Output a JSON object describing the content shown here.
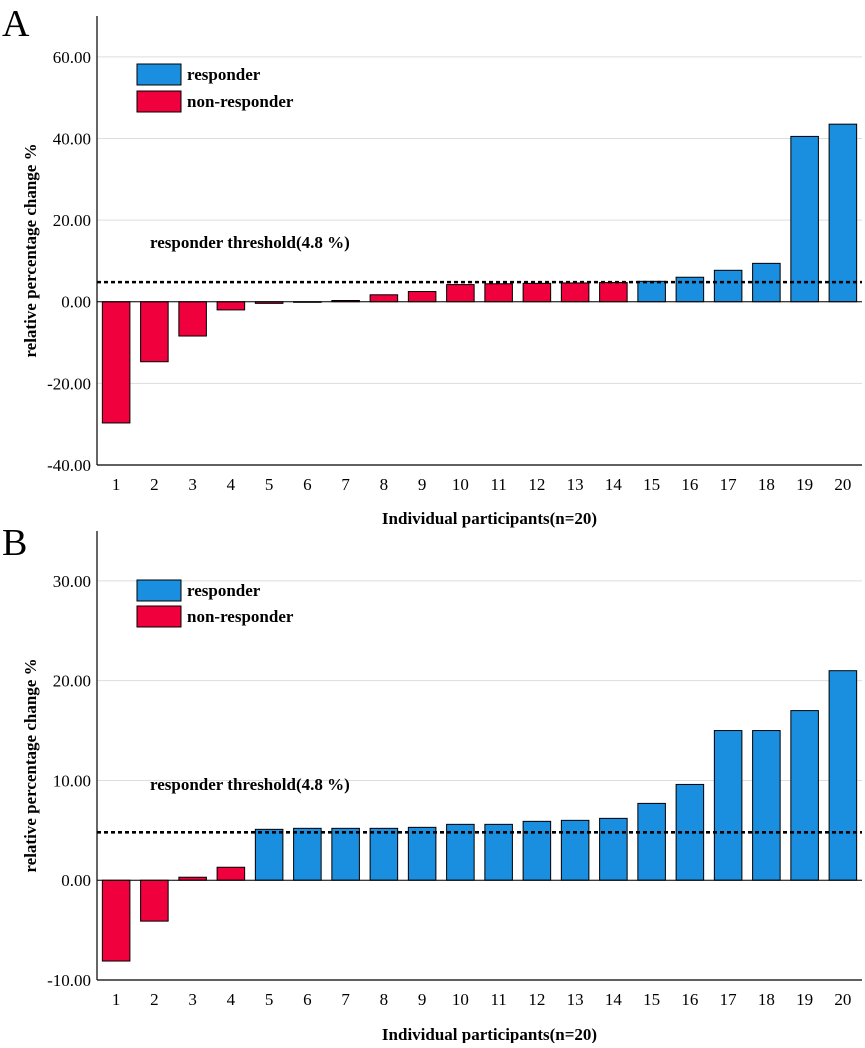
{
  "chart_data": [
    {
      "panel": "A",
      "type": "bar",
      "xlabel": "Individual participants(n=20)",
      "ylabel": "relative percentage change %",
      "ylim": [
        -40,
        70
      ],
      "yticks": [
        -40,
        -20,
        0,
        20,
        40,
        60
      ],
      "ytick_labels": [
        "-40.00",
        "-20.00",
        "0.00",
        "20.00",
        "40.00",
        "60.00"
      ],
      "gridlines": true,
      "legend_position": "top-left",
      "categories": [
        "1",
        "2",
        "3",
        "4",
        "5",
        "6",
        "7",
        "8",
        "9",
        "10",
        "11",
        "12",
        "13",
        "14",
        "15",
        "16",
        "17",
        "18",
        "19",
        "20"
      ],
      "values": [
        -29.7,
        -14.7,
        -8.4,
        -2.0,
        -0.4,
        0.0,
        0.3,
        1.7,
        2.5,
        4.2,
        4.4,
        4.5,
        4.6,
        4.7,
        5.0,
        6.0,
        7.7,
        9.4,
        40.5,
        43.5
      ],
      "groups": [
        "non-responder",
        "non-responder",
        "non-responder",
        "non-responder",
        "non-responder",
        "non-responder",
        "non-responder",
        "non-responder",
        "non-responder",
        "non-responder",
        "non-responder",
        "non-responder",
        "non-responder",
        "non-responder",
        "responder",
        "responder",
        "responder",
        "responder",
        "responder",
        "responder"
      ],
      "threshold": 4.8,
      "threshold_label": "responder threshold(4.8 %)"
    },
    {
      "panel": "B",
      "type": "bar",
      "xlabel": "Individual participants(n=20)",
      "ylabel": "relative percentage change %",
      "ylim": [
        -10,
        35
      ],
      "yticks": [
        -10,
        0,
        10,
        20,
        30
      ],
      "ytick_labels": [
        "-10.00",
        "0.00",
        "10.00",
        "20.00",
        "30.00"
      ],
      "gridlines": true,
      "legend_position": "top-left",
      "categories": [
        "1",
        "2",
        "3",
        "4",
        "5",
        "6",
        "7",
        "8",
        "9",
        "10",
        "11",
        "12",
        "13",
        "14",
        "15",
        "16",
        "17",
        "18",
        "19",
        "20"
      ],
      "values": [
        -8.1,
        -4.1,
        0.3,
        1.3,
        5.1,
        5.2,
        5.2,
        5.2,
        5.3,
        5.6,
        5.6,
        5.9,
        6.0,
        6.2,
        7.7,
        9.6,
        15.0,
        15.0,
        17.0,
        21.0
      ],
      "groups": [
        "non-responder",
        "non-responder",
        "non-responder",
        "non-responder",
        "responder",
        "responder",
        "responder",
        "responder",
        "responder",
        "responder",
        "responder",
        "responder",
        "responder",
        "responder",
        "responder",
        "responder",
        "responder",
        "responder",
        "responder",
        "responder"
      ],
      "threshold": 4.8,
      "threshold_label": "responder threshold(4.8 %)"
    }
  ],
  "legend": {
    "responder": "responder",
    "non_responder": "non-responder"
  },
  "colors": {
    "responder": "#1a8fe0",
    "non_responder": "#f0003c",
    "grid": "#dddddd",
    "axis": "#000000"
  }
}
